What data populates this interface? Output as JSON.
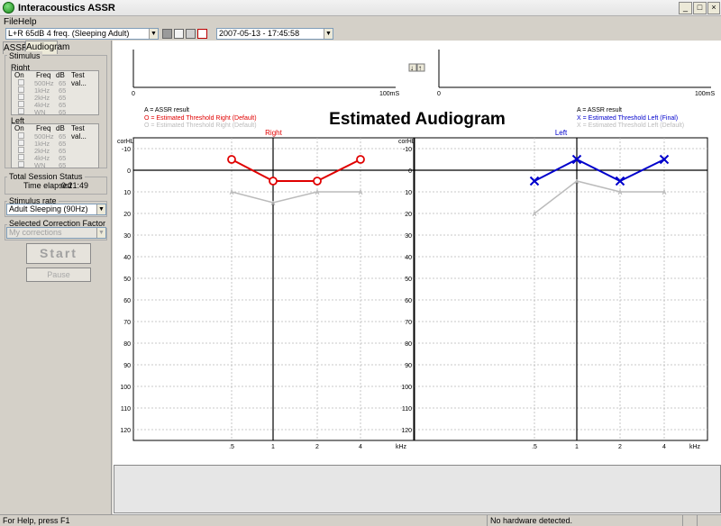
{
  "window": {
    "title": "Interacoustics ASSR"
  },
  "menu": {
    "file": "File",
    "help": "Help"
  },
  "toolbar": {
    "protocol_value": "L+R 65dB 4 freq. (Sleeping Adult)",
    "session_value": "2007-05-13 - 17:45:58"
  },
  "tabs": [
    "ASSR",
    "Audiogram"
  ],
  "stimulus": {
    "group_title": "Stimulus",
    "right": {
      "title": "Right",
      "headers": [
        "On",
        "Freq",
        "dB",
        "Test val..."
      ],
      "rows": [
        {
          "freq": "500Hz",
          "db": "65"
        },
        {
          "freq": "1kHz",
          "db": "65"
        },
        {
          "freq": "2kHz",
          "db": "65"
        },
        {
          "freq": "4kHz",
          "db": "65"
        },
        {
          "freq": "WN",
          "db": "65"
        }
      ]
    },
    "left": {
      "title": "Left",
      "headers": [
        "On",
        "Freq",
        "dB",
        "Test val..."
      ],
      "rows": [
        {
          "freq": "500Hz",
          "db": "65"
        },
        {
          "freq": "1kHz",
          "db": "65"
        },
        {
          "freq": "2kHz",
          "db": "65"
        },
        {
          "freq": "4kHz",
          "db": "65"
        },
        {
          "freq": "WN",
          "db": "65"
        }
      ]
    }
  },
  "session": {
    "title": "Total Session Status",
    "label": "Time elapsed",
    "value": "0:21:49"
  },
  "stim_rate": {
    "title": "Stimulus rate",
    "value": "Adult Sleeping (90Hz)"
  },
  "correction": {
    "title": "Selected Correction Factor",
    "value": "My corrections"
  },
  "buttons": {
    "start": "Start",
    "pause": "Pause"
  },
  "waveform": {
    "x_start": "0",
    "x_end": "100mS",
    "up_arrow": "↑",
    "down_arrow": "↓"
  },
  "heading": "Estimated Audiogram",
  "legend_right": {
    "assr": "A = ASSR result",
    "estimated": "O = Estimated Threshold Right (Default)",
    "estimated_gray": "O = Estimated Threshold Right (Default)"
  },
  "legend_left": {
    "assr": "A = ASSR result",
    "estimated": "X = Estimated Threshold Left (Final)",
    "estimated_gray": "X = Estimated Threshold Left (Default)"
  },
  "colors": {
    "right": "#e00000",
    "left": "#0000cc",
    "gray": "#bbbbbb"
  },
  "chart_data": [
    {
      "type": "line",
      "title": "Right",
      "ylabel": "corHL",
      "xlabel": "kHz",
      "x_categories": [
        ".5",
        "1",
        "2",
        "4"
      ],
      "y_ticks": [
        -10,
        0,
        10,
        20,
        30,
        40,
        50,
        60,
        70,
        80,
        90,
        100,
        110,
        120
      ],
      "ylim": [
        -15,
        125
      ],
      "y_inverted": true,
      "series": [
        {
          "marker": "circle",
          "color": "#e00000",
          "values": [
            -5,
            5,
            5,
            -5
          ]
        },
        {
          "marker": "A",
          "color": "#bbbbbb",
          "values": [
            10,
            15,
            10,
            10
          ]
        }
      ]
    },
    {
      "type": "line",
      "title": "Left",
      "ylabel": "corHL",
      "xlabel": "kHz",
      "x_categories": [
        ".5",
        "1",
        "2",
        "4"
      ],
      "y_ticks": [
        -10,
        0,
        10,
        20,
        30,
        40,
        50,
        60,
        70,
        80,
        90,
        100,
        110,
        120
      ],
      "ylim": [
        -15,
        125
      ],
      "y_inverted": true,
      "series": [
        {
          "marker": "x",
          "color": "#0000cc",
          "values": [
            5,
            -5,
            5,
            -5
          ]
        },
        {
          "marker": "A",
          "color": "#bbbbbb",
          "values": [
            20,
            5,
            10,
            10
          ]
        }
      ]
    }
  ],
  "status": {
    "help": "For Help, press F1",
    "hardware": "No hardware detected."
  }
}
